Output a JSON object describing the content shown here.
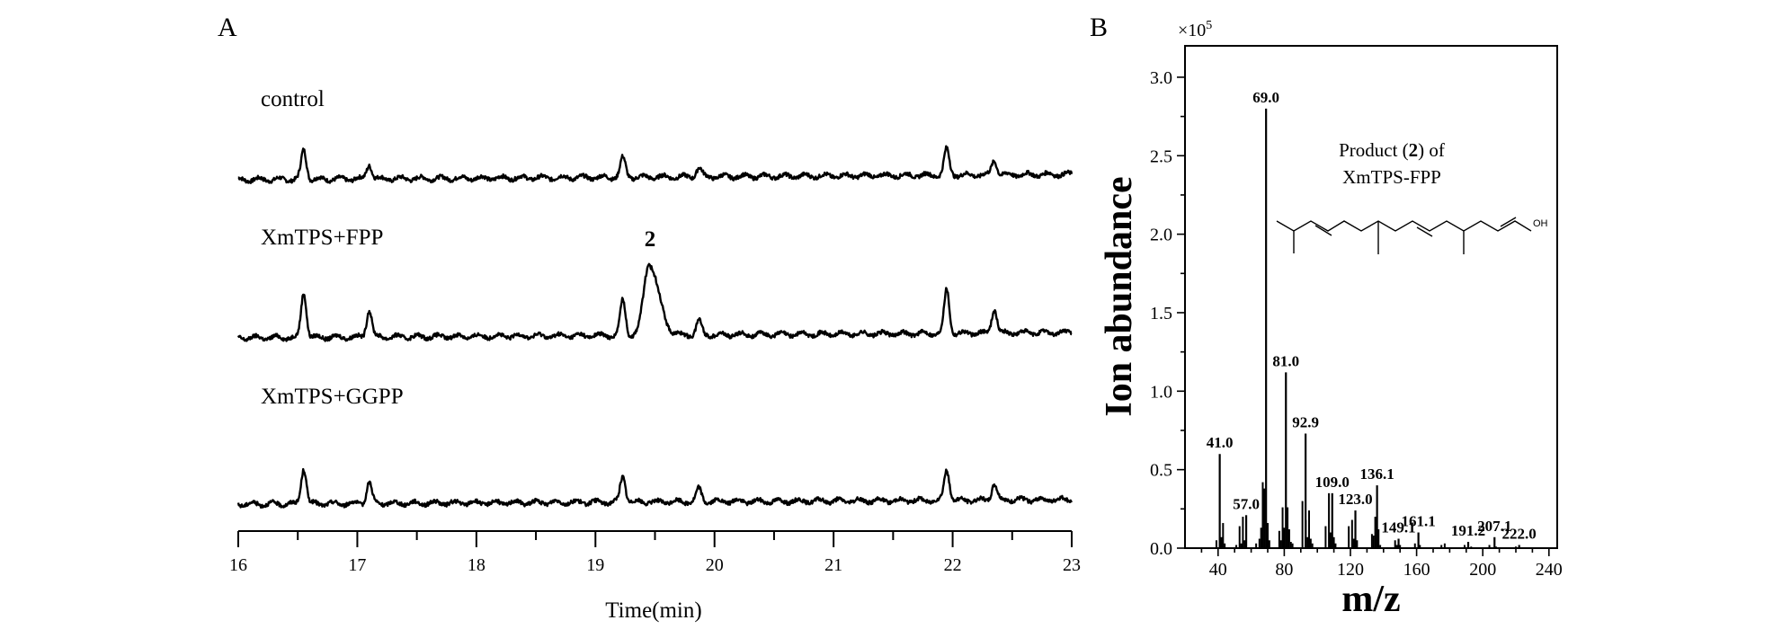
{
  "panel_a": {
    "panel_label": "A",
    "xlabel": "Time(min)",
    "xticks": [
      "16",
      "17",
      "18",
      "19",
      "20",
      "21",
      "22",
      "23"
    ],
    "compound_label": "2"
  },
  "panel_b": {
    "panel_label": "B",
    "scale_note_base": "×10",
    "scale_note_exp": "5",
    "xlabel": "m/z",
    "ylabel": "Ion abundance",
    "xticks": [
      "40",
      "80",
      "120",
      "160",
      "200",
      "240"
    ],
    "yticks": [
      "0.0",
      "0.5",
      "1.0",
      "1.5",
      "2.0",
      "2.5",
      "3.0"
    ],
    "inset_line1_pre": "Product (",
    "inset_line1_bold": "2",
    "inset_line1_post": ") of",
    "inset_line2": "XmTPS-FPP",
    "structure_oh": "OH"
  },
  "chart_data": [
    {
      "type": "line",
      "title": "",
      "xlabel": "Time(min)",
      "ylabel": "",
      "xlim": [
        16,
        23
      ],
      "grid": false,
      "series": [
        {
          "name": "control",
          "peaks": [
            [
              16.55,
              0.9
            ],
            [
              17.1,
              0.45
            ],
            [
              19.23,
              0.6
            ],
            [
              19.87,
              0.28
            ],
            [
              21.95,
              0.8
            ],
            [
              22.35,
              0.45
            ]
          ]
        },
        {
          "name": "XmTPS+FPP",
          "peaks": [
            [
              16.55,
              1.4
            ],
            [
              17.1,
              0.85
            ],
            [
              19.23,
              1.1
            ],
            [
              19.45,
              2.2
            ],
            [
              19.87,
              0.45
            ],
            [
              21.95,
              1.35
            ],
            [
              22.35,
              0.75
            ]
          ]
        },
        {
          "name": "XmTPS+GGPP",
          "peaks": [
            [
              16.55,
              1.1
            ],
            [
              17.1,
              0.65
            ],
            [
              19.23,
              0.8
            ],
            [
              19.87,
              0.4
            ],
            [
              21.95,
              0.95
            ],
            [
              22.35,
              0.5
            ]
          ]
        }
      ],
      "annotations": [
        {
          "x": 19.45,
          "series": "XmTPS+FPP",
          "text": "2"
        }
      ]
    },
    {
      "type": "bar",
      "title": "",
      "xlabel": "m/z",
      "ylabel": "Ion abundance",
      "y_multiplier": "×10^5",
      "xlim": [
        20,
        245
      ],
      "ylim": [
        0,
        3.2
      ],
      "grid": false,
      "labeled_peaks": [
        {
          "x": 41.0,
          "y": 0.6,
          "label": "41.0"
        },
        {
          "x": 57.0,
          "y": 0.21,
          "label": "57.0"
        },
        {
          "x": 69.0,
          "y": 2.8,
          "label": "69.0"
        },
        {
          "x": 81.0,
          "y": 1.12,
          "label": "81.0"
        },
        {
          "x": 92.9,
          "y": 0.73,
          "label": "92.9"
        },
        {
          "x": 109.0,
          "y": 0.35,
          "label": "109.0"
        },
        {
          "x": 123.0,
          "y": 0.24,
          "label": "123.0"
        },
        {
          "x": 136.1,
          "y": 0.4,
          "label": "136.1"
        },
        {
          "x": 149.1,
          "y": 0.06,
          "label": "149.1"
        },
        {
          "x": 161.1,
          "y": 0.1,
          "label": "161.1"
        },
        {
          "x": 191.2,
          "y": 0.04,
          "label": "191.2"
        },
        {
          "x": 207.1,
          "y": 0.07,
          "label": "207.1"
        },
        {
          "x": 222.0,
          "y": 0.02,
          "label": "222.0"
        }
      ],
      "minor_peaks": [
        [
          39,
          0.05
        ],
        [
          42,
          0.07
        ],
        [
          43,
          0.16
        ],
        [
          44,
          0.03
        ],
        [
          51,
          0.02
        ],
        [
          53,
          0.14
        ],
        [
          54,
          0.03
        ],
        [
          55,
          0.2
        ],
        [
          56,
          0.05
        ],
        [
          63,
          0.03
        ],
        [
          65,
          0.06
        ],
        [
          66,
          0.13
        ],
        [
          67,
          0.42
        ],
        [
          68,
          0.38
        ],
        [
          70,
          0.16
        ],
        [
          71,
          0.05
        ],
        [
          77,
          0.11
        ],
        [
          78,
          0.05
        ],
        [
          79,
          0.26
        ],
        [
          80,
          0.13
        ],
        [
          82,
          0.26
        ],
        [
          83,
          0.12
        ],
        [
          84,
          0.04
        ],
        [
          85,
          0.03
        ],
        [
          91,
          0.3
        ],
        [
          93,
          0.18
        ],
        [
          94,
          0.07
        ],
        [
          95,
          0.24
        ],
        [
          96,
          0.06
        ],
        [
          97,
          0.03
        ],
        [
          105,
          0.14
        ],
        [
          107,
          0.35
        ],
        [
          108,
          0.1
        ],
        [
          110,
          0.07
        ],
        [
          111,
          0.03
        ],
        [
          119,
          0.14
        ],
        [
          121,
          0.18
        ],
        [
          122,
          0.06
        ],
        [
          124,
          0.05
        ],
        [
          133,
          0.09
        ],
        [
          134,
          0.08
        ],
        [
          135,
          0.2
        ],
        [
          137,
          0.12
        ],
        [
          138,
          0.02
        ],
        [
          147,
          0.05
        ],
        [
          148,
          0.02
        ],
        [
          150,
          0.02
        ],
        [
          159,
          0.03
        ],
        [
          162,
          0.02
        ],
        [
          175,
          0.02
        ],
        [
          177,
          0.03
        ],
        [
          189,
          0.02
        ],
        [
          193,
          0.01
        ],
        [
          204,
          0.02
        ],
        [
          208,
          0.01
        ],
        [
          220,
          0.01
        ]
      ]
    }
  ]
}
